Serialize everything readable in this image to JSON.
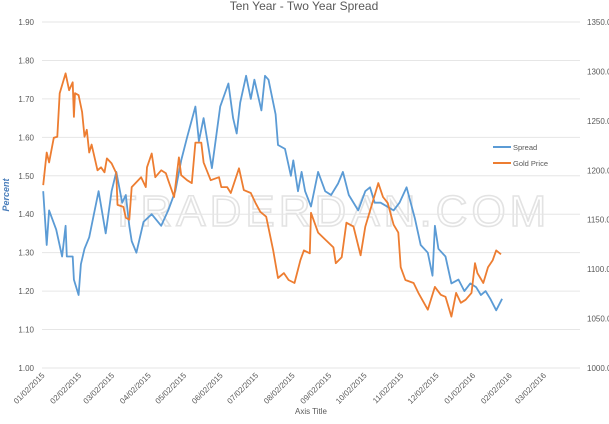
{
  "chart_data": {
    "type": "line",
    "title": "Ten Year - Two Year Spread",
    "xlabel": "Axis Title",
    "ylabel": "Percent",
    "y2label": "",
    "watermark": "TRADERDAN.COM",
    "ylim": [
      1.0,
      1.9
    ],
    "y2lim": [
      1000,
      1350
    ],
    "yticks": [
      "1.00",
      "1.10",
      "1.20",
      "1.30",
      "1.40",
      "1.50",
      "1.60",
      "1.70",
      "1.80",
      "1.90"
    ],
    "y2ticks": [
      "1000.0",
      "1050.0",
      "1100.0",
      "1150.0",
      "1200.0",
      "1250.0",
      "1300.0",
      "1350.0"
    ],
    "xticks": [
      "01/02/2015",
      "02/02/2015",
      "03/02/2015",
      "04/02/2015",
      "05/02/2015",
      "06/02/2015",
      "07/02/2015",
      "08/02/2015",
      "09/02/2015",
      "10/02/2015",
      "11/02/2015",
      "12/02/2015",
      "01/02/2016",
      "02/02/2016",
      "03/02/2016"
    ],
    "xtick_dates": [
      "2015-01-02",
      "2015-02-02",
      "2015-03-02",
      "2015-04-02",
      "2015-05-02",
      "2015-06-02",
      "2015-07-02",
      "2015-08-02",
      "2015-09-02",
      "2015-10-02",
      "2015-11-02",
      "2015-12-02",
      "2016-01-02",
      "2016-02-02",
      "2016-03-02"
    ],
    "xlim": [
      "2015-01-01",
      "2016-04-01"
    ],
    "grid": true,
    "legend_position": "right",
    "series": [
      {
        "name": "Spread",
        "axis": "left",
        "color": "#5b9bd5",
        "x": [
          "2015-01-02",
          "2015-01-05",
          "2015-01-07",
          "2015-01-13",
          "2015-01-18",
          "2015-01-21",
          "2015-01-22",
          "2015-01-27",
          "2015-01-28",
          "2015-02-01",
          "2015-02-03",
          "2015-02-06",
          "2015-02-10",
          "2015-02-14",
          "2015-02-18",
          "2015-02-24",
          "2015-03-01",
          "2015-03-05",
          "2015-03-10",
          "2015-03-13",
          "2015-03-16",
          "2015-03-18",
          "2015-03-22",
          "2015-03-28",
          "2015-04-04",
          "2015-04-12",
          "2015-04-18",
          "2015-04-24",
          "2015-04-29",
          "2015-05-04",
          "2015-05-11",
          "2015-05-14",
          "2015-05-18",
          "2015-05-25",
          "2015-06-01",
          "2015-06-08",
          "2015-06-12",
          "2015-06-15",
          "2015-06-18",
          "2015-06-23",
          "2015-06-27",
          "2015-06-30",
          "2015-07-06",
          "2015-07-09",
          "2015-07-12",
          "2015-07-18",
          "2015-07-20",
          "2015-07-26",
          "2015-07-31",
          "2015-08-02",
          "2015-08-06",
          "2015-08-09",
          "2015-08-12",
          "2015-08-17",
          "2015-08-23",
          "2015-08-29",
          "2015-09-03",
          "2015-09-09",
          "2015-09-13",
          "2015-09-18",
          "2015-09-26",
          "2015-10-02",
          "2015-10-06",
          "2015-10-10",
          "2015-10-15",
          "2015-10-26",
          "2015-10-31",
          "2015-11-06",
          "2015-11-13",
          "2015-11-18",
          "2015-11-24",
          "2015-11-28",
          "2015-11-30",
          "2015-12-03",
          "2015-12-09",
          "2015-12-14",
          "2015-12-20",
          "2015-12-25",
          "2015-12-30",
          "2016-01-04",
          "2016-01-08",
          "2016-01-12",
          "2016-01-16",
          "2016-01-21",
          "2016-01-26"
        ],
        "values": [
          1.46,
          1.32,
          1.41,
          1.36,
          1.29,
          1.37,
          1.29,
          1.29,
          1.23,
          1.19,
          1.27,
          1.31,
          1.34,
          1.4,
          1.46,
          1.35,
          1.46,
          1.51,
          1.43,
          1.45,
          1.37,
          1.33,
          1.3,
          1.38,
          1.4,
          1.37,
          1.41,
          1.46,
          1.54,
          1.6,
          1.68,
          1.59,
          1.65,
          1.52,
          1.68,
          1.74,
          1.65,
          1.61,
          1.69,
          1.76,
          1.7,
          1.75,
          1.67,
          1.76,
          1.75,
          1.66,
          1.58,
          1.57,
          1.5,
          1.54,
          1.46,
          1.51,
          1.46,
          1.42,
          1.51,
          1.46,
          1.45,
          1.48,
          1.51,
          1.45,
          1.41,
          1.46,
          1.47,
          1.43,
          1.43,
          1.41,
          1.43,
          1.47,
          1.39,
          1.32,
          1.3,
          1.24,
          1.37,
          1.31,
          1.29,
          1.22,
          1.23,
          1.2,
          1.22,
          1.21,
          1.19,
          1.2,
          1.18,
          1.15,
          1.18
        ]
      },
      {
        "name": "Gold Price",
        "axis": "right",
        "color": "#ed7d31",
        "x": [
          "2015-01-02",
          "2015-01-05",
          "2015-01-07",
          "2015-01-11",
          "2015-01-14",
          "2015-01-16",
          "2015-01-21",
          "2015-01-24",
          "2015-01-27",
          "2015-01-28",
          "2015-01-29",
          "2015-02-01",
          "2015-02-04",
          "2015-02-06",
          "2015-02-08",
          "2015-02-10",
          "2015-02-12",
          "2015-02-17",
          "2015-02-20",
          "2015-02-23",
          "2015-02-25",
          "2015-03-01",
          "2015-03-05",
          "2015-03-06",
          "2015-03-11",
          "2015-03-13",
          "2015-03-16",
          "2015-03-18",
          "2015-03-26",
          "2015-03-30",
          "2015-03-31",
          "2015-04-04",
          "2015-04-07",
          "2015-04-12",
          "2015-04-16",
          "2015-04-18",
          "2015-04-23",
          "2015-04-27",
          "2015-04-29",
          "2015-05-04",
          "2015-05-08",
          "2015-05-11",
          "2015-05-16",
          "2015-05-18",
          "2015-05-24",
          "2015-05-31",
          "2015-06-02",
          "2015-06-07",
          "2015-06-10",
          "2015-06-17",
          "2015-06-21",
          "2015-06-27",
          "2015-07-01",
          "2015-07-05",
          "2015-07-10",
          "2015-07-16",
          "2015-07-20",
          "2015-07-25",
          "2015-07-29",
          "2015-08-03",
          "2015-08-08",
          "2015-08-11",
          "2015-08-16",
          "2015-08-17",
          "2015-08-23",
          "2015-08-29",
          "2015-09-05",
          "2015-09-07",
          "2015-09-12",
          "2015-09-16",
          "2015-09-22",
          "2015-09-28",
          "2015-10-02",
          "2015-10-07",
          "2015-10-13",
          "2015-10-17",
          "2015-10-21",
          "2015-10-26",
          "2015-10-30",
          "2015-11-01",
          "2015-11-05",
          "2015-11-12",
          "2015-11-16",
          "2015-11-24",
          "2015-11-30",
          "2015-12-05",
          "2015-12-09",
          "2015-12-14",
          "2015-12-18",
          "2015-12-22",
          "2015-12-26",
          "2015-12-31",
          "2016-01-03",
          "2016-01-05",
          "2016-01-10",
          "2016-01-14",
          "2016-01-18",
          "2016-01-21",
          "2016-01-25"
        ],
        "values": [
          1185,
          1218,
          1208,
          1233,
          1234,
          1278,
          1298,
          1281,
          1289,
          1254,
          1278,
          1276,
          1259,
          1234,
          1241,
          1218,
          1226,
          1200,
          1203,
          1198,
          1212,
          1207,
          1197,
          1165,
          1163,
          1152,
          1150,
          1183,
          1193,
          1183,
          1203,
          1217,
          1193,
          1200,
          1197,
          1190,
          1173,
          1213,
          1195,
          1190,
          1187,
          1228,
          1228,
          1208,
          1190,
          1193,
          1183,
          1183,
          1177,
          1202,
          1180,
          1177,
          1167,
          1158,
          1153,
          1119,
          1091,
          1096,
          1089,
          1086,
          1109,
          1119,
          1116,
          1157,
          1137,
          1130,
          1122,
          1106,
          1112,
          1147,
          1143,
          1114,
          1143,
          1163,
          1187,
          1173,
          1167,
          1145,
          1137,
          1102,
          1089,
          1086,
          1076,
          1059,
          1082,
          1074,
          1072,
          1052,
          1076,
          1066,
          1069,
          1076,
          1106,
          1096,
          1086,
          1102,
          1109,
          1119,
          1115
        ]
      }
    ]
  }
}
